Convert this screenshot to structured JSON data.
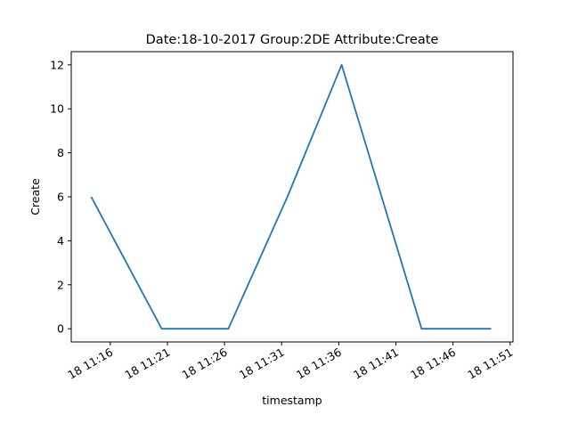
{
  "chart_data": {
    "type": "line",
    "title": "Date:18-10-2017  Group:2DE Attribute:Create",
    "xlabel": "timestamp",
    "ylabel": "Create",
    "x_tick_labels": [
      "18 11:16",
      "18 11:21",
      "18 11:26",
      "18 11:31",
      "18 11:36",
      "18 11:41",
      "18 11:46",
      "18 11:51"
    ],
    "y_ticks": [
      0,
      2,
      4,
      6,
      8,
      10,
      12
    ],
    "ylim": [
      -0.6,
      12.6
    ],
    "xlim": [
      "2017-10-18 11:12:35",
      "2017-10-18 11:51:15"
    ],
    "grid": false,
    "series": [
      {
        "color": "#1f77b4",
        "x": [
          "2017-10-18 11:14:20",
          "2017-10-18 11:20:30",
          "2017-10-18 11:26:20",
          "2017-10-18 11:31:30",
          "2017-10-18 11:36:15",
          "2017-10-18 11:43:15",
          "2017-10-18 11:49:20"
        ],
        "values": [
          6,
          0,
          0,
          6,
          12,
          0,
          0
        ]
      }
    ]
  }
}
